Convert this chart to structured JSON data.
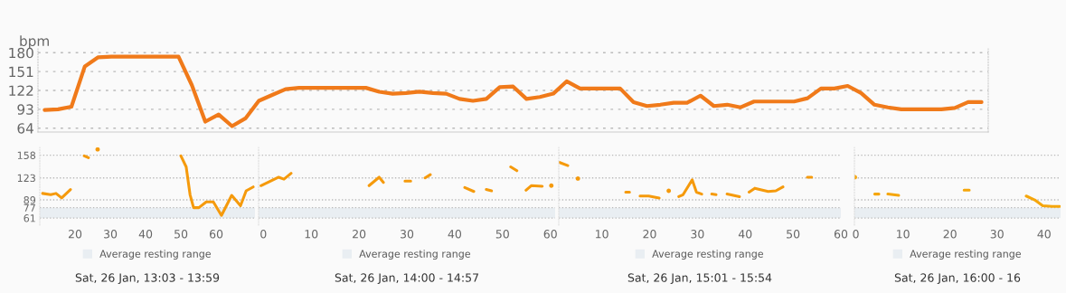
{
  "chart_data": [
    {
      "type": "line",
      "ylabel": "bpm",
      "categories": [
        null,
        null,
        null,
        null,
        null,
        null,
        null,
        null,
        null,
        null,
        null,
        null,
        null,
        null,
        null,
        null,
        null,
        null,
        null,
        null,
        null,
        null,
        null,
        null,
        null,
        null,
        null,
        null,
        null,
        null,
        null,
        null,
        null,
        null,
        null,
        null,
        null,
        null,
        null,
        null,
        null,
        null,
        null,
        null,
        null,
        null,
        null,
        null,
        null,
        null,
        null,
        null,
        null,
        null,
        null,
        null,
        null,
        null,
        null,
        null,
        null,
        null,
        null,
        null,
        null,
        null,
        null,
        null,
        null,
        null,
        null
      ],
      "series": [
        {
          "color": "#f07a1a",
          "values": [
            92,
            93,
            97,
            159,
            173,
            174,
            174,
            174,
            174,
            174,
            174,
            130,
            74,
            85,
            67,
            79,
            106,
            115,
            124,
            126,
            126,
            126,
            126,
            126,
            126,
            120,
            117,
            118,
            120,
            118,
            117,
            109,
            106,
            109,
            127,
            128,
            109,
            112,
            117,
            136,
            125,
            125,
            125,
            125,
            104,
            98,
            100,
            103,
            103,
            114,
            98,
            100,
            96,
            105,
            105,
            105,
            105,
            110,
            125,
            125,
            129,
            118,
            100,
            96,
            93,
            93,
            93,
            93,
            95,
            104,
            104
          ]
        }
      ],
      "ylim": [
        58,
        186
      ],
      "yticks": [
        64,
        93,
        122,
        151,
        180
      ],
      "grid": "y",
      "tick_labels": "y",
      "line_style": "solid",
      "marker": "none"
    },
    {
      "type": "line",
      "xlabel": "Sat, 26 Jan, 13:03 - 13:59",
      "x": [
        10.8,
        13.1,
        14.6,
        16.2,
        18.7,
        20.5,
        22.6,
        23.8,
        25,
        26.4,
        40,
        50.0,
        51.5,
        52.6,
        53.6,
        55.1,
        57.2,
        59.2,
        61.5,
        64.4,
        66.9,
        68.5,
        70.5
      ],
      "series": [
        {
          "color": "#f59a0c",
          "values": [
            99,
            97,
            99,
            92,
            105,
            null,
            157,
            154,
            null,
            167,
            null,
            157,
            140,
            97,
            77,
            77,
            86,
            86,
            65,
            96,
            80,
            103,
            109
          ]
        }
      ],
      "xlim": [
        10,
        71
      ],
      "xticks": [
        20,
        30,
        40,
        50,
        60
      ],
      "ylim": [
        50,
        170
      ],
      "yticks": [
        61,
        77,
        89,
        123,
        158
      ],
      "grid": "y",
      "line_style": "solid",
      "marker": "none",
      "bands": [
        {
          "axis": "y",
          "from": 61,
          "to": 77,
          "label": "Average resting range",
          "color": "#e9eef2"
        }
      ],
      "legend": "bottom"
    },
    {
      "type": "line",
      "xlabel": "Sat, 26 Jan, 14:00 - 14:57",
      "x": [
        -0.5,
        3.2,
        4.3,
        5.8,
        14,
        22.1,
        24.2,
        25.1,
        27,
        29.6,
        30.8,
        32,
        33.8,
        34.9,
        38,
        42.1,
        44.0,
        45,
        46.6,
        47.7,
        50,
        51.7,
        53.0,
        54,
        54.9,
        56.0,
        58.3,
        59,
        60.2
      ],
      "series": [
        {
          "color": "#f59a0c",
          "values": [
            111,
            124,
            121,
            130,
            null,
            111,
            124,
            116,
            null,
            118,
            118,
            null,
            123,
            128,
            null,
            108,
            102,
            null,
            105,
            103,
            null,
            140,
            134,
            null,
            104,
            111,
            110,
            null,
            111
          ]
        }
      ],
      "xlim": [
        -1,
        61
      ],
      "xticks": [
        0,
        10,
        20,
        30,
        40,
        50,
        60
      ],
      "ylim": [
        50,
        170
      ],
      "yticks": [
        61,
        77,
        89,
        123,
        158
      ],
      "grid": "y",
      "tick_labels": "x",
      "line_style": "solid",
      "marker": "none",
      "bands": [
        {
          "axis": "y",
          "from": 61,
          "to": 77,
          "label": "Average resting range",
          "color": "#e9eef2"
        }
      ],
      "legend": "bottom"
    },
    {
      "type": "line",
      "xlabel": "Sat, 26 Jan, 15:01 - 15:54",
      "x": [
        1.1,
        2.9,
        4,
        5.0,
        10,
        15.0,
        15.8,
        17,
        18.0,
        19.8,
        22.0,
        23,
        24.0,
        25,
        26.1,
        27.0,
        28.9,
        29.8,
        30.9,
        32,
        33.0,
        33.9,
        35,
        36.2,
        38.8,
        40,
        40.8,
        42.0,
        44.8,
        46.4,
        47.9,
        50,
        53.0,
        53.9
      ],
      "series": [
        {
          "color": "#f59a0c",
          "values": [
            147,
            142,
            null,
            122,
            null,
            101,
            101,
            null,
            95,
            95,
            92,
            null,
            103,
            null,
            94,
            97,
            120,
            101,
            98,
            null,
            98,
            97,
            null,
            98,
            94,
            null,
            101,
            107,
            102,
            103,
            109,
            null,
            124,
            124
          ]
        }
      ],
      "xlim": [
        1,
        60
      ],
      "xticks": [
        10,
        20,
        30,
        40,
        50,
        60
      ],
      "ylim": [
        50,
        170
      ],
      "yticks": [
        61,
        77,
        89,
        123,
        158
      ],
      "grid": "y",
      "tick_labels": "x",
      "line_style": "solid",
      "marker": "none",
      "bands": [
        {
          "axis": "y",
          "from": 61,
          "to": 77,
          "label": "Average resting range",
          "color": "#e9eef2"
        }
      ],
      "legend": "bottom"
    },
    {
      "type": "line",
      "xlabel": "Sat, 26 Jan, 16:00 - 16",
      "x": [
        -0.2,
        2,
        4.0,
        4.9,
        6,
        6.8,
        9.1,
        15,
        23.0,
        24.1,
        30,
        36.2,
        38.0,
        39.7,
        41.7,
        43.3
      ],
      "series": [
        {
          "color": "#f5a60c",
          "values": [
            124,
            null,
            98,
            98,
            null,
            98,
            96,
            null,
            104,
            104,
            null,
            95,
            89,
            80,
            79,
            79
          ]
        }
      ],
      "xlim": [
        -0.3,
        43.5
      ],
      "xticks": [
        0,
        10,
        20,
        30,
        40
      ],
      "ylim": [
        50,
        170
      ],
      "yticks": [
        61,
        77,
        89,
        123,
        158
      ],
      "grid": "y",
      "tick_labels": "x",
      "line_style": "solid",
      "marker": "none",
      "bands": [
        {
          "axis": "y",
          "from": 61,
          "to": 77,
          "label": "Average resting range",
          "color": "#e9eef2"
        }
      ],
      "legend": "bottom"
    }
  ]
}
